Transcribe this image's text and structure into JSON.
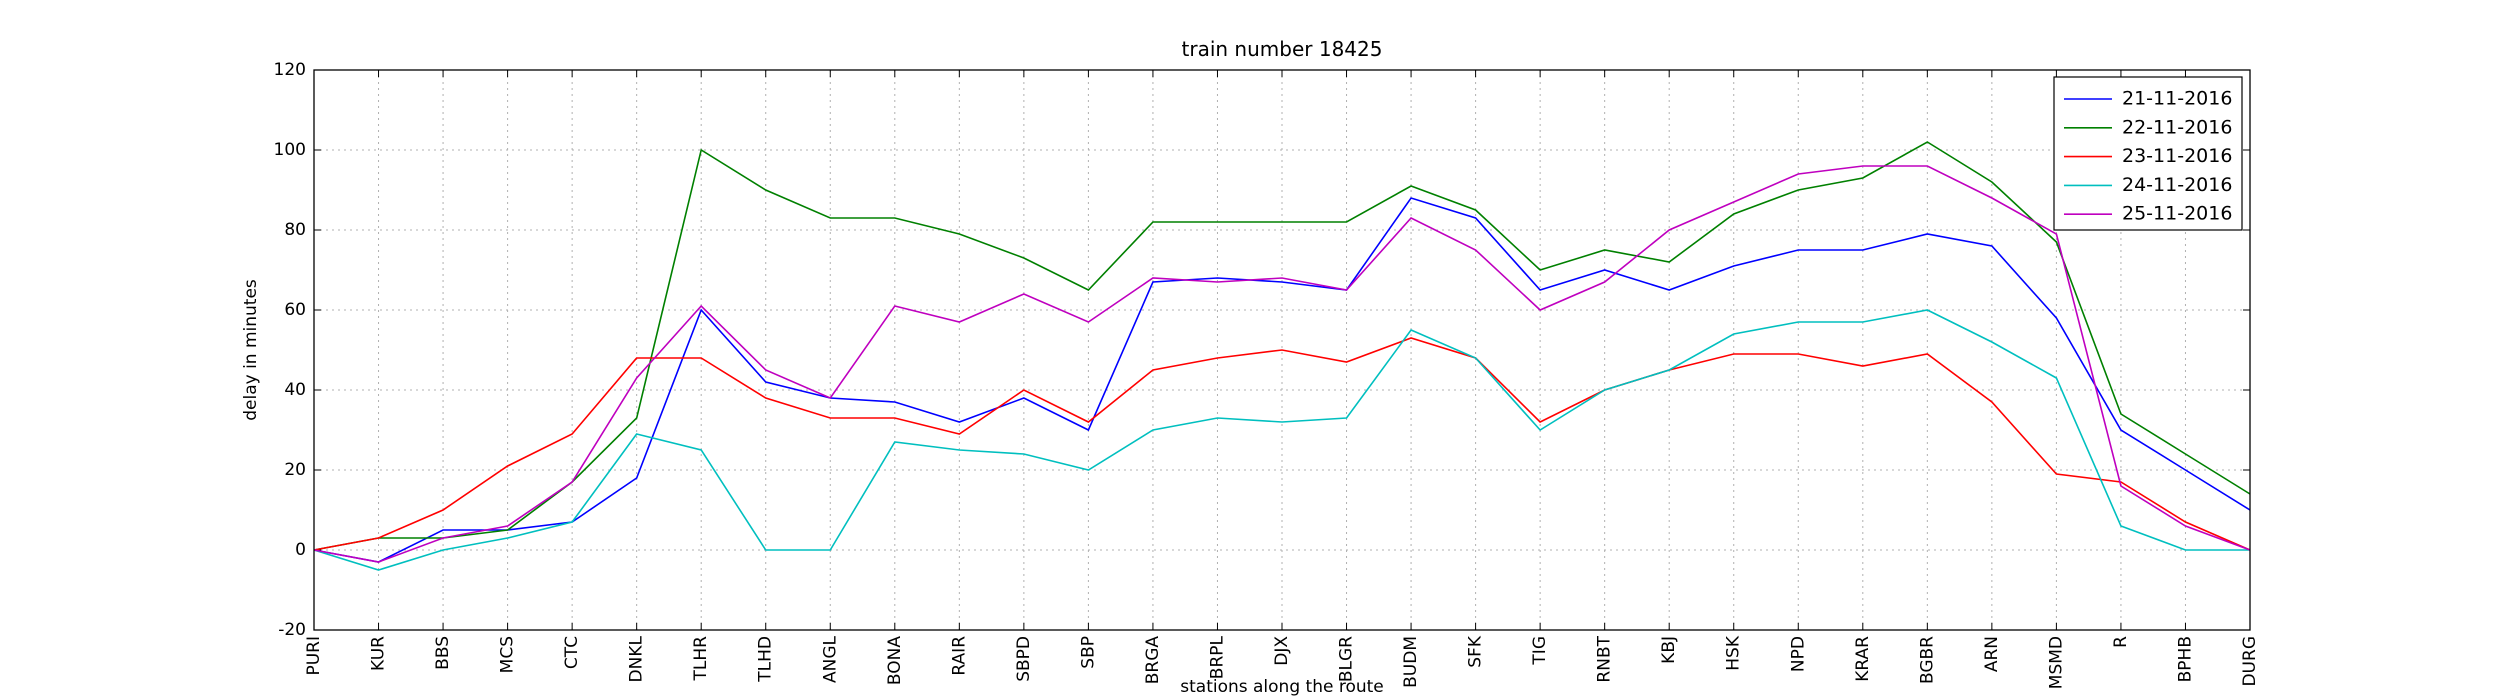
{
  "chart_data": {
    "type": "line",
    "title": "train number 18425",
    "x_label": "stations along the route",
    "y_label": "delay in minutes",
    "categories": [
      "PURI",
      "KUR",
      "BBS",
      "MCS",
      "CTC",
      "DNKL",
      "TLHR",
      "TLHD",
      "ANGL",
      "BONA",
      "RAIR",
      "SBPD",
      "SBP",
      "BRGA",
      "BRPL",
      "DJX",
      "BLGR",
      "BUDM",
      "SFK",
      "TIG",
      "RNBT",
      "KBJ",
      "HSK",
      "NPD",
      "KRAR",
      "BGBR",
      "ARN",
      "MSMD",
      "R",
      "BPHB",
      "DURG"
    ],
    "series": [
      {
        "name": "21-11-2016",
        "color": "#0000ff",
        "values": [
          0,
          -3,
          5,
          5,
          7,
          18,
          60,
          42,
          38,
          37,
          32,
          38,
          30,
          67,
          68,
          67,
          65,
          88,
          83,
          65,
          70,
          65,
          71,
          75,
          75,
          79,
          76,
          58,
          30,
          20,
          10
        ]
      },
      {
        "name": "22-11-2016",
        "color": "#008000",
        "values": [
          0,
          3,
          3,
          5,
          17,
          33,
          100,
          90,
          83,
          83,
          79,
          73,
          65,
          82,
          82,
          82,
          82,
          91,
          85,
          70,
          75,
          72,
          84,
          90,
          93,
          102,
          92,
          77,
          34,
          24,
          14
        ]
      },
      {
        "name": "23-11-2016",
        "color": "#ff0000",
        "values": [
          0,
          3,
          10,
          21,
          29,
          48,
          48,
          38,
          33,
          33,
          29,
          40,
          32,
          45,
          48,
          50,
          47,
          53,
          48,
          32,
          40,
          45,
          49,
          49,
          46,
          49,
          37,
          19,
          17,
          7,
          0
        ]
      },
      {
        "name": "24-11-2016",
        "color": "#00bfbf",
        "values": [
          0,
          -5,
          0,
          3,
          7,
          29,
          25,
          0,
          0,
          27,
          25,
          24,
          20,
          30,
          33,
          32,
          33,
          55,
          48,
          30,
          40,
          45,
          54,
          57,
          57,
          60,
          52,
          43,
          6,
          0,
          0
        ]
      },
      {
        "name": "25-11-2016",
        "color": "#bf00bf",
        "values": [
          0,
          -3,
          3,
          6,
          17,
          43,
          61,
          45,
          38,
          61,
          57,
          64,
          57,
          68,
          67,
          68,
          65,
          83,
          75,
          60,
          67,
          80,
          87,
          94,
          96,
          96,
          88,
          79,
          16,
          6,
          0
        ]
      }
    ],
    "ylim": [
      -20,
      120
    ],
    "yticks": [
      -20,
      0,
      20,
      40,
      60,
      80,
      100,
      120
    ],
    "grid": true,
    "legend": "upper right"
  }
}
